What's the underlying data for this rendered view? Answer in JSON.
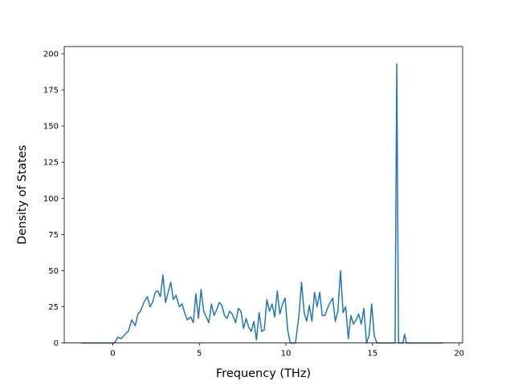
{
  "chart_data": {
    "type": "line",
    "title": "",
    "xlabel": "Frequency (THz)",
    "ylabel": "Density of States",
    "xlim": [
      -2.8,
      20.2
    ],
    "ylim": [
      0,
      205
    ],
    "xticks": [
      0,
      5,
      10,
      15,
      20
    ],
    "yticks": [
      0,
      25,
      50,
      75,
      100,
      125,
      150,
      175,
      200
    ],
    "grid": false,
    "line_color": "#1f77b4",
    "series": [
      {
        "x": [
          -1.8,
          0.1,
          0.3,
          0.5,
          0.7,
          0.9,
          1.1,
          1.3,
          1.45,
          1.6,
          1.8,
          2.0,
          2.15,
          2.3,
          2.45,
          2.6,
          2.75,
          2.9,
          3.05,
          3.2,
          3.35,
          3.5,
          3.65,
          3.85,
          4.0,
          4.15,
          4.3,
          4.5,
          4.65,
          4.8,
          4.95,
          5.1,
          5.25,
          5.4,
          5.55,
          5.7,
          5.85,
          6.0,
          6.15,
          6.3,
          6.45,
          6.6,
          6.75,
          6.9,
          7.1,
          7.25,
          7.4,
          7.55,
          7.7,
          7.85,
          8.0,
          8.15,
          8.3,
          8.45,
          8.6,
          8.75,
          8.9,
          9.05,
          9.2,
          9.35,
          9.5,
          9.65,
          9.8,
          9.95,
          10.1,
          10.25,
          10.4,
          10.55,
          10.75,
          10.9,
          11.05,
          11.2,
          11.35,
          11.5,
          11.65,
          11.8,
          11.95,
          12.1,
          12.25,
          12.4,
          12.55,
          12.7,
          12.85,
          13.0,
          13.15,
          13.3,
          13.45,
          13.6,
          13.75,
          13.9,
          14.05,
          14.2,
          14.35,
          14.5,
          14.65,
          14.8,
          14.95,
          15.1,
          15.25,
          15.4,
          16.2,
          16.3,
          16.4,
          16.5,
          16.6,
          16.75,
          16.85,
          16.95,
          17.1,
          19.1
        ],
        "y": [
          0,
          0,
          4,
          3,
          6,
          8,
          16,
          12,
          20,
          22,
          28,
          32,
          25,
          28,
          35,
          36,
          32,
          47,
          28,
          35,
          42,
          30,
          33,
          25,
          27,
          21,
          16,
          18,
          14,
          34,
          17,
          37,
          22,
          18,
          14,
          27,
          19,
          23,
          28,
          26,
          19,
          17,
          22,
          20,
          14,
          24,
          22,
          10,
          17,
          11,
          8,
          15,
          2,
          21,
          8,
          9,
          30,
          22,
          27,
          18,
          36,
          20,
          27,
          31,
          9,
          0,
          0,
          0,
          19,
          42,
          21,
          15,
          26,
          15,
          35,
          25,
          35,
          19,
          19,
          24,
          28,
          31,
          15,
          22,
          50,
          21,
          25,
          3,
          19,
          13,
          16,
          20,
          13,
          24,
          0,
          5,
          27,
          5,
          0,
          0,
          0,
          0,
          193,
          0,
          0,
          0,
          6,
          0,
          0,
          0
        ]
      }
    ]
  }
}
